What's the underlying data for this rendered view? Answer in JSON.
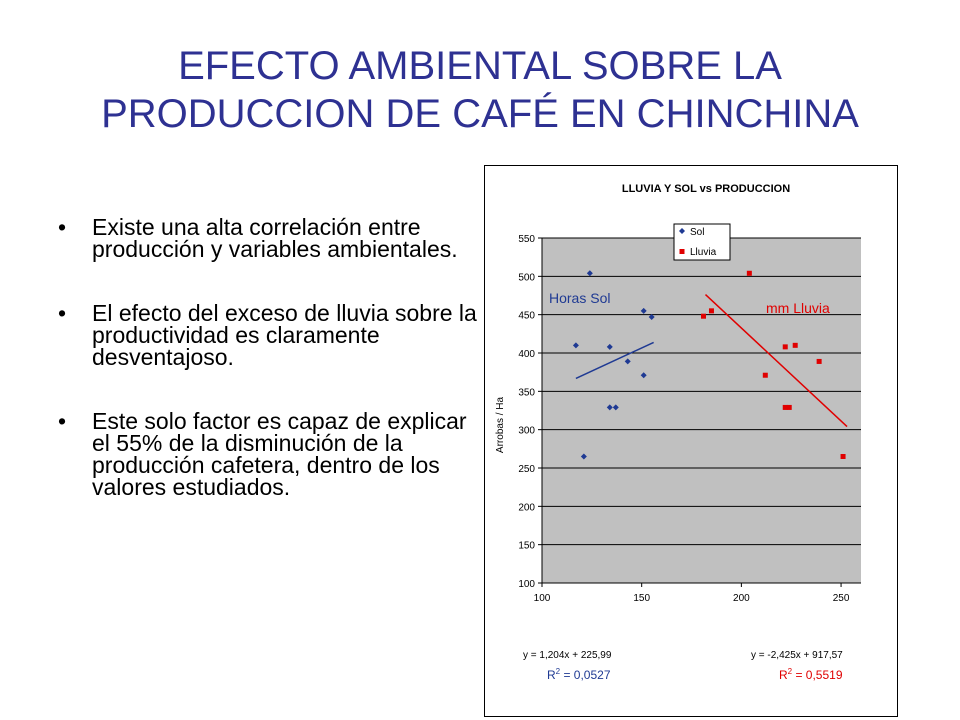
{
  "slide": {
    "title_line1": "EFECTO AMBIENTAL SOBRE LA",
    "title_line2": "PRODUCCION DE CAFÉ EN CHINCHINA",
    "bullet_char": "•",
    "bullets": [
      "Existe una alta correlación entre producción y variables ambientales.",
      "El efecto del exceso de lluvia sobre la productividad es claramente desventajoso.",
      "Este solo factor es capaz de explicar el 55% de la disminución de la producción cafetera, dentro de los valores estudiados."
    ]
  },
  "colors": {
    "title": "#2e3192",
    "plot_area": "#c0c0c0",
    "sol": "#1f3a93",
    "lluvia": "#e00000"
  },
  "chart_data": {
    "type": "scatter",
    "title": "LLUVIA Y SOL vs PRODUCCION",
    "xlabel": "",
    "ylabel": "Arrobas / Ha",
    "xlim": [
      100,
      260
    ],
    "ylim": [
      100,
      550
    ],
    "xticks": [
      100,
      150,
      200,
      250
    ],
    "yticks": [
      100,
      150,
      200,
      250,
      300,
      350,
      400,
      450,
      500,
      550
    ],
    "grid": true,
    "legend": "top-center",
    "series": [
      {
        "name": "Sol",
        "marker": "diamond",
        "points": [
          [
            117,
            410
          ],
          [
            121,
            265
          ],
          [
            124,
            504
          ],
          [
            134,
            408
          ],
          [
            134,
            329
          ],
          [
            137,
            329
          ],
          [
            143,
            389
          ],
          [
            151,
            455
          ],
          [
            151,
            371
          ],
          [
            155,
            447
          ]
        ],
        "trendline": {
          "label": "Horas Sol",
          "x_range": [
            117,
            156
          ],
          "slope": 1.204,
          "intercept": 225.99
        },
        "equation": "y = 1,204x + 225,99",
        "r2_prefix": "R",
        "r2_sup": "2",
        "r2_value": " = 0,0527"
      },
      {
        "name": "Lluvia",
        "marker": "square",
        "points": [
          [
            181,
            448
          ],
          [
            185,
            455
          ],
          [
            204,
            504
          ],
          [
            212,
            371
          ],
          [
            222,
            408
          ],
          [
            222,
            329
          ],
          [
            224,
            329
          ],
          [
            227,
            410
          ],
          [
            239,
            389
          ],
          [
            251,
            265
          ]
        ],
        "trendline": {
          "label": "mm Lluvia",
          "x_range": [
            182,
            253
          ],
          "slope": -2.425,
          "intercept": 917.57
        },
        "equation": "y = -2,425x + 917,57",
        "r2_prefix": "R",
        "r2_sup": "2",
        "r2_value": " = 0,5519"
      }
    ]
  }
}
